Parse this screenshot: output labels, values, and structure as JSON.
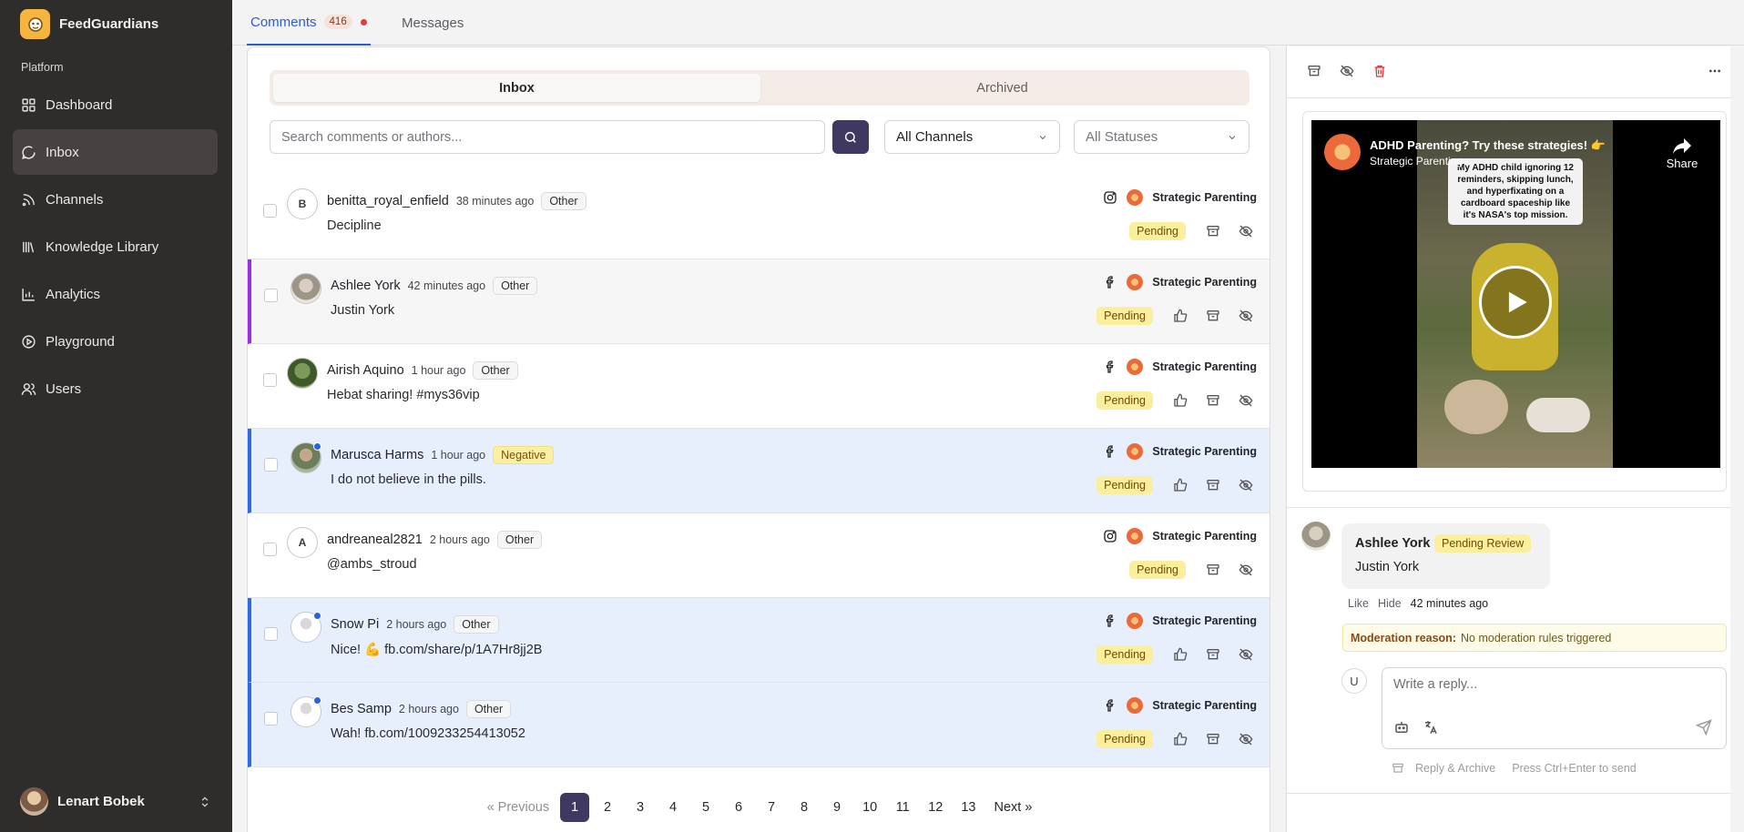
{
  "app": {
    "name": "FeedGuardians"
  },
  "sidebar": {
    "section": "Platform",
    "items": [
      {
        "label": "Dashboard",
        "icon": "dashboard-icon"
      },
      {
        "label": "Inbox",
        "icon": "inbox-icon",
        "active": true
      },
      {
        "label": "Channels",
        "icon": "channels-icon"
      },
      {
        "label": "Knowledge Library",
        "icon": "library-icon"
      },
      {
        "label": "Analytics",
        "icon": "analytics-icon"
      },
      {
        "label": "Playground",
        "icon": "playground-icon"
      },
      {
        "label": "Users",
        "icon": "users-icon"
      }
    ],
    "user": {
      "name": "Lenart Bobek"
    }
  },
  "tabs": {
    "comments": "Comments",
    "comments_count": "416",
    "messages": "Messages"
  },
  "list": {
    "segments": {
      "inbox": "Inbox",
      "archived": "Archived"
    },
    "search": {
      "placeholder": "Search comments or authors..."
    },
    "channel_filter": "All Channels",
    "status_filter": "All Statuses",
    "rows": [
      {
        "author": "benitta_royal_enfield",
        "initial": "B",
        "time": "38 minutes ago",
        "tag": "Other",
        "text": "Decipline",
        "platform": "instagram",
        "page": "Strategic Parenting",
        "status": "Pending"
      },
      {
        "author": "Ashlee York",
        "time": "42 minutes ago",
        "tag": "Other",
        "text": "Justin York",
        "platform": "facebook",
        "page": "Strategic Parenting",
        "status": "Pending"
      },
      {
        "author": "Airish Aquino",
        "time": "1 hour ago",
        "tag": "Other",
        "text": "Hebat sharing! #mys36vip",
        "platform": "facebook",
        "page": "Strategic Parenting",
        "status": "Pending"
      },
      {
        "author": "Marusca Harms",
        "time": "1 hour ago",
        "tag": "Negative",
        "text": "I do not believe in the pills.",
        "platform": "facebook",
        "page": "Strategic Parenting",
        "status": "Pending"
      },
      {
        "author": "andreaneal2821",
        "initial": "A",
        "time": "2 hours ago",
        "tag": "Other",
        "text": "@ambs_stroud",
        "platform": "instagram",
        "page": "Strategic Parenting",
        "status": "Pending"
      },
      {
        "author": "Snow Pi",
        "time": "2 hours ago",
        "tag": "Other",
        "text": "Nice! 💪 fb.com/share/p/1A7Hr8jj2B",
        "platform": "facebook",
        "page": "Strategic Parenting",
        "status": "Pending"
      },
      {
        "author": "Bes Samp",
        "time": "2 hours ago",
        "tag": "Other",
        "text": "Wah! fb.com/1009233254413052",
        "platform": "facebook",
        "page": "Strategic Parenting",
        "status": "Pending"
      }
    ],
    "pagination": {
      "prev": "« Previous",
      "pages": [
        "1",
        "2",
        "3",
        "4",
        "5",
        "6",
        "7",
        "8",
        "9",
        "10",
        "11",
        "12",
        "13"
      ],
      "current": "1",
      "next": "Next »"
    }
  },
  "detail": {
    "video": {
      "title": "ADHD Parenting? Try these strategies! 👉",
      "channel": "Strategic Parenting",
      "share": "Share",
      "caption": "My ADHD child ignoring 12 reminders, skipping lunch, and hyperfixating on a cardboard spaceship like it's NASA's top mission."
    },
    "comment": {
      "author": "Ashlee York",
      "badge": "Pending Review",
      "text": "Justin York",
      "like": "Like",
      "hide": "Hide",
      "time": "42 minutes ago"
    },
    "moderation": {
      "label": "Moderation reason:",
      "value": "No moderation rules triggered"
    },
    "reply": {
      "user_initial": "U",
      "placeholder": "Write a reply...",
      "archive_label": "Reply & Archive",
      "hint": "Press Ctrl+Enter to send"
    }
  }
}
